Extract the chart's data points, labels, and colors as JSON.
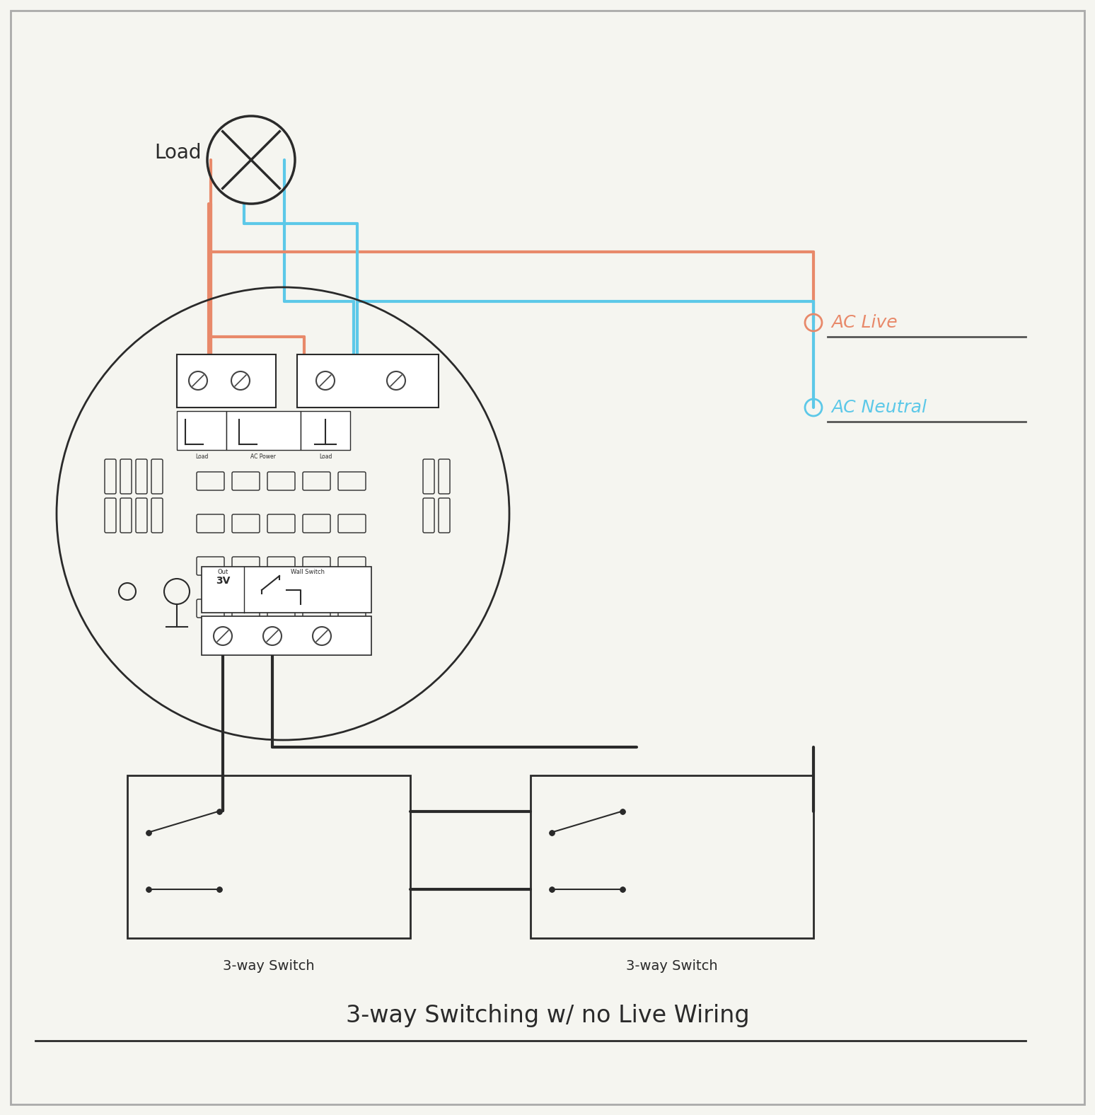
{
  "bg_color": "#f5f5f0",
  "line_color": "#2a2a2a",
  "live_color": "#e8896a",
  "neutral_color": "#5cc8e8",
  "title": "3-way Switching w/ no Live Wiring",
  "label_load": "Load",
  "label_ac_live": "AC Live",
  "label_ac_neutral": "AC Neutral",
  "label_switch1": "3-way Switch",
  "label_switch2": "3-way Switch",
  "label_out_3v": "Out   Wall Switch\n3V",
  "wire_lw": 3.0,
  "device_lw": 2.0
}
